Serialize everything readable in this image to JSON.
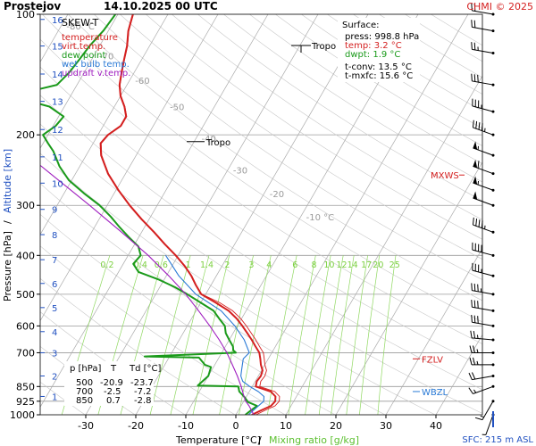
{
  "header": {
    "station": "Prostejov",
    "datetime": "14.10.2025 00 UTC",
    "credit": "CHMI © 2025",
    "chart_name": "SKEW-T"
  },
  "legend": {
    "items": [
      {
        "label": "temperature",
        "color": "#d42020"
      },
      {
        "label": "virt.temp.",
        "color": "#d42020"
      },
      {
        "label": "dew point",
        "color": "#1a9a1a"
      },
      {
        "label": "wet bulb temp.",
        "color": "#2a7ad6"
      },
      {
        "label": "updraft v.temp.",
        "color": "#a020c0"
      }
    ]
  },
  "surface": {
    "title": "Surface:",
    "press": "press: 998.8 hPa",
    "temp": "temp: 3.2 °C",
    "dwpt": "dwpt: 1.9 °C",
    "tconv": "t-conv: 13.5 °C",
    "tmxfc": "t-mxfc: 15.6 °C"
  },
  "levels_table": {
    "headers": [
      "p [hPa]",
      "T",
      "Td [°C]"
    ],
    "rows": [
      [
        "500",
        "-20.9",
        "-23.7"
      ],
      [
        "700",
        "-2.5",
        "-7.2"
      ],
      [
        "850",
        "0.7",
        "-2.8"
      ]
    ]
  },
  "markers": {
    "tropo_upper": "Tropo",
    "tropo_lower": "Tropo",
    "mxws": "MXWS",
    "fzlv": "FZLV",
    "wbzl": "WBZL",
    "sfc": "SFC: 215 m ASL"
  },
  "axis_labels": {
    "x_temperature": "Temperature [°C]",
    "x_separator": "/",
    "x_mixing": "Mixing ratio [g/kg]",
    "y_pressure": "Pressure [hPa]",
    "y_separator": "/",
    "y_altitude": "Altitude [km]"
  },
  "colors": {
    "temperature": "#d42020",
    "dewpoint": "#1a9a1a",
    "wetbulb": "#2a7ad6",
    "updraft": "#a020c0",
    "mixing": "#8fd860",
    "isotherm": "#aaaaaa",
    "dry_adiabat": "#c8c8c8",
    "axis_blue": "#2050c0"
  },
  "chart_data": {
    "type": "line",
    "title": "SKEW-T",
    "xlabel": "Temperature [°C] / Mixing ratio [g/kg]",
    "ylabel": "Pressure [hPa] / Altitude [km]",
    "xlim": [
      -35,
      45
    ],
    "ylim": [
      1000,
      100
    ],
    "y_scale": "log",
    "pressure_ticks": [
      100,
      200,
      300,
      400,
      500,
      600,
      700,
      850,
      925,
      1000
    ],
    "temperature_ticks": [
      -30,
      -20,
      -10,
      0,
      10,
      20,
      30,
      40
    ],
    "altitude_ticks_km": [
      {
        "km": 1,
        "p": 900
      },
      {
        "km": 2,
        "p": 800
      },
      {
        "km": 3,
        "p": 700
      },
      {
        "km": 4,
        "p": 620
      },
      {
        "km": 5,
        "p": 540
      },
      {
        "km": 6,
        "p": 470
      },
      {
        "km": 7,
        "p": 410
      },
      {
        "km": 8,
        "p": 355
      },
      {
        "km": 9,
        "p": 307
      },
      {
        "km": 10,
        "p": 264
      },
      {
        "km": 11,
        "p": 227
      },
      {
        "km": 12,
        "p": 194
      },
      {
        "km": 13,
        "p": 165
      },
      {
        "km": 14,
        "p": 141
      },
      {
        "km": 15,
        "p": 120
      },
      {
        "km": 16,
        "p": 103
      }
    ],
    "isotherm_labels": [
      {
        "t": -80,
        "label": "-80 °C",
        "p": 107
      },
      {
        "t": -70,
        "label": "-70",
        "p": 127
      },
      {
        "t": -60,
        "label": "-60",
        "p": 146
      },
      {
        "t": -50,
        "label": "-50",
        "p": 170
      },
      {
        "t": -40,
        "label": "-40",
        "p": 204
      },
      {
        "t": -30,
        "label": "-30",
        "p": 245
      },
      {
        "t": -20,
        "label": "-20",
        "p": 280
      },
      {
        "t": -10,
        "label": "-10 °C",
        "p": 320
      }
    ],
    "mixing_ratio": {
      "label_pressure": 420,
      "values": [
        0.2,
        0.4,
        0.6,
        1,
        1.4,
        2,
        3,
        4,
        6,
        8,
        10,
        12,
        14,
        17,
        20,
        25
      ],
      "labels": [
        "0.2",
        "0.4",
        "0.6",
        "1",
        "1.4",
        "2",
        "3",
        "4",
        "6",
        "8",
        "10",
        "12",
        "14",
        "17",
        "20",
        "25"
      ]
    },
    "series": [
      {
        "name": "temperature",
        "points": [
          [
            1000,
            3.2
          ],
          [
            975,
            4.5
          ],
          [
            950,
            6.0
          ],
          [
            925,
            6.3
          ],
          [
            900,
            5.8
          ],
          [
            875,
            4.3
          ],
          [
            850,
            0.7
          ],
          [
            825,
            0.3
          ],
          [
            800,
            0.5
          ],
          [
            775,
            0.2
          ],
          [
            750,
            -0.8
          ],
          [
            725,
            -1.6
          ],
          [
            700,
            -2.5
          ],
          [
            675,
            -4.0
          ],
          [
            650,
            -5.5
          ],
          [
            625,
            -7.2
          ],
          [
            600,
            -9.0
          ],
          [
            575,
            -11.0
          ],
          [
            550,
            -13.5
          ],
          [
            525,
            -17.0
          ],
          [
            500,
            -20.9
          ],
          [
            475,
            -23.0
          ],
          [
            450,
            -25.0
          ],
          [
            425,
            -27.5
          ],
          [
            400,
            -30.5
          ],
          [
            375,
            -34.0
          ],
          [
            350,
            -37.5
          ],
          [
            325,
            -41.5
          ],
          [
            300,
            -45.5
          ],
          [
            275,
            -49.5
          ],
          [
            250,
            -53.5
          ],
          [
            225,
            -57.0
          ],
          [
            210,
            -58.5
          ],
          [
            200,
            -58.0
          ],
          [
            190,
            -56.5
          ],
          [
            180,
            -56.5
          ],
          [
            170,
            -58.0
          ],
          [
            160,
            -60.0
          ],
          [
            150,
            -61.5
          ],
          [
            140,
            -62.5
          ],
          [
            130,
            -63.5
          ],
          [
            120,
            -64.5
          ],
          [
            110,
            -66.0
          ],
          [
            105,
            -66.5
          ],
          [
            100,
            -67.0
          ]
        ]
      },
      {
        "name": "dew point",
        "points": [
          [
            1000,
            1.9
          ],
          [
            975,
            2.5
          ],
          [
            950,
            3.2
          ],
          [
            930,
            1.0
          ],
          [
            900,
            -0.5
          ],
          [
            875,
            -2.0
          ],
          [
            850,
            -2.8
          ],
          [
            845,
            -11.0
          ],
          [
            800,
            -10.0
          ],
          [
            760,
            -10.5
          ],
          [
            750,
            -12.0
          ],
          [
            720,
            -14.0
          ],
          [
            715,
            -25.0
          ],
          [
            700,
            -7.2
          ],
          [
            690,
            -8.0
          ],
          [
            675,
            -8.5
          ],
          [
            650,
            -10.0
          ],
          [
            625,
            -11.5
          ],
          [
            600,
            -12.5
          ],
          [
            575,
            -14.5
          ],
          [
            550,
            -16.5
          ],
          [
            525,
            -20.0
          ],
          [
            500,
            -23.7
          ],
          [
            480,
            -27.0
          ],
          [
            460,
            -31.0
          ],
          [
            440,
            -36.0
          ],
          [
            420,
            -38.0
          ],
          [
            400,
            -37.5
          ],
          [
            380,
            -39.0
          ],
          [
            360,
            -42.0
          ],
          [
            340,
            -45.0
          ],
          [
            320,
            -48.0
          ],
          [
            300,
            -51.5
          ],
          [
            280,
            -56.0
          ],
          [
            260,
            -60.5
          ],
          [
            240,
            -64.0
          ],
          [
            220,
            -67.0
          ],
          [
            210,
            -69.0
          ],
          [
            200,
            -71.0
          ],
          [
            190,
            -69.5
          ],
          [
            180,
            -69.0
          ],
          [
            170,
            -73.0
          ],
          [
            160,
            -82.0
          ],
          [
            150,
            -74.0
          ],
          [
            140,
            -73.0
          ],
          [
            130,
            -72.5
          ],
          [
            120,
            -72.0
          ],
          [
            110,
            -71.0
          ],
          [
            100,
            -70.5
          ]
        ]
      },
      {
        "name": "wet bulb temp.",
        "points": [
          [
            1000,
            2.5
          ],
          [
            925,
            4.0
          ],
          [
            900,
            3.5
          ],
          [
            875,
            1.8
          ],
          [
            850,
            -0.5
          ],
          [
            825,
            -2.5
          ],
          [
            800,
            -3.5
          ],
          [
            775,
            -4.0
          ],
          [
            750,
            -4.5
          ],
          [
            725,
            -5.0
          ],
          [
            700,
            -4.5
          ],
          [
            650,
            -7.0
          ],
          [
            600,
            -10.5
          ],
          [
            550,
            -15.0
          ],
          [
            500,
            -22.0
          ],
          [
            450,
            -27.5
          ],
          [
            400,
            -32.5
          ]
        ]
      },
      {
        "name": "updraft v.temp.",
        "points": [
          [
            1000,
            3.6
          ],
          [
            950,
            1.6
          ],
          [
            925,
            0.4
          ],
          [
            900,
            -0.5
          ],
          [
            850,
            -2.2
          ],
          [
            800,
            -4.2
          ],
          [
            750,
            -6.5
          ],
          [
            700,
            -9.0
          ],
          [
            650,
            -12.0
          ],
          [
            600,
            -15.5
          ],
          [
            550,
            -19.5
          ],
          [
            500,
            -24.0
          ],
          [
            450,
            -29.5
          ],
          [
            400,
            -36.0
          ],
          [
            350,
            -44.0
          ],
          [
            300,
            -53.5
          ],
          [
            250,
            -65.0
          ],
          [
            200,
            -79.0
          ],
          [
            160,
            -91.0
          ]
        ]
      }
    ],
    "winds": [
      {
        "p": 1000,
        "dir": 200,
        "kt": 5
      },
      {
        "p": 925,
        "dir": 210,
        "kt": 15
      },
      {
        "p": 850,
        "dir": 250,
        "kt": 15
      },
      {
        "p": 800,
        "dir": 260,
        "kt": 20
      },
      {
        "p": 750,
        "dir": 270,
        "kt": 25
      },
      {
        "p": 700,
        "dir": 270,
        "kt": 25
      },
      {
        "p": 650,
        "dir": 275,
        "kt": 25
      },
      {
        "p": 600,
        "dir": 280,
        "kt": 30
      },
      {
        "p": 550,
        "dir": 280,
        "kt": 30
      },
      {
        "p": 500,
        "dir": 280,
        "kt": 35
      },
      {
        "p": 450,
        "dir": 285,
        "kt": 35
      },
      {
        "p": 400,
        "dir": 285,
        "kt": 40
      },
      {
        "p": 350,
        "dir": 290,
        "kt": 45
      },
      {
        "p": 300,
        "dir": 290,
        "kt": 50
      },
      {
        "p": 275,
        "dir": 290,
        "kt": 55
      },
      {
        "p": 250,
        "dir": 290,
        "kt": 60
      },
      {
        "p": 225,
        "dir": 290,
        "kt": 55
      },
      {
        "p": 200,
        "dir": 290,
        "kt": 45
      },
      {
        "p": 175,
        "dir": 285,
        "kt": 35
      },
      {
        "p": 150,
        "dir": 280,
        "kt": 30
      },
      {
        "p": 125,
        "dir": 280,
        "kt": 25
      },
      {
        "p": 110,
        "dir": 280,
        "kt": 20
      },
      {
        "p": 100,
        "dir": 280,
        "kt": 20
      }
    ],
    "annotations": [
      {
        "text": "Tropo",
        "p": 120
      },
      {
        "text": "Tropo",
        "p": 208
      },
      {
        "text": "MXWS",
        "p": 252
      },
      {
        "text": "FZLV",
        "p": 725
      },
      {
        "text": "WBZL",
        "p": 875
      }
    ]
  }
}
